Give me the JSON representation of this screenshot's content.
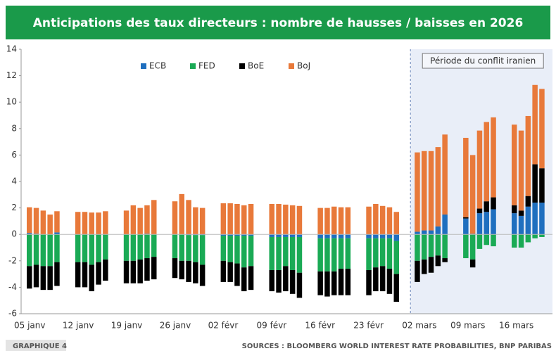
{
  "chart_data": {
    "type": "stacked_bar",
    "title": "Anticipations des taux directeurs : nombre de hausses / baisses en 2026",
    "categories": [
      "05 janv",
      null,
      null,
      null,
      null,
      "12 janv",
      null,
      null,
      null,
      null,
      "19 janv",
      null,
      null,
      null,
      null,
      "26 janv",
      null,
      null,
      null,
      null,
      "02 févr",
      null,
      null,
      null,
      null,
      "09 févr",
      null,
      null,
      null,
      null,
      "16 févr",
      null,
      null,
      null,
      null,
      "23 févr",
      null,
      null,
      null,
      null,
      "02 mars",
      null,
      null,
      null,
      null,
      "09 mars",
      null,
      null,
      null,
      null,
      "16 mars",
      null,
      null,
      null,
      null
    ],
    "series": [
      {
        "name": "ECB",
        "color": "#1f6fbf",
        "values": [
          0.1,
          0.05,
          0,
          0,
          0.15,
          0,
          0,
          0,
          0,
          0,
          0,
          0,
          0,
          0.05,
          0,
          0,
          0,
          -0.05,
          -0.05,
          -0.05,
          -0.1,
          -0.1,
          -0.1,
          -0.1,
          -0.1,
          -0.2,
          -0.2,
          -0.2,
          -0.2,
          -0.2,
          -0.3,
          -0.3,
          -0.3,
          -0.3,
          -0.3,
          -0.3,
          -0.3,
          -0.3,
          -0.3,
          -0.5,
          0.2,
          0.3,
          0.3,
          0.6,
          1.5,
          1.2,
          0.05,
          1.6,
          1.7,
          1.9,
          1.6,
          1.4,
          2.1,
          2.4,
          2.4
        ]
      },
      {
        "name": "FED",
        "color": "#1aaa55",
        "values": [
          -2.4,
          -2.3,
          -2.4,
          -2.4,
          -2.1,
          -2.1,
          -2.1,
          -2.3,
          -2.1,
          -1.9,
          -2.0,
          -2.0,
          -1.9,
          -1.8,
          -1.7,
          -1.8,
          -2.0,
          -1.95,
          -2.05,
          -2.25,
          -1.9,
          -2.0,
          -2.1,
          -2.4,
          -2.3,
          -2.5,
          -2.5,
          -2.2,
          -2.5,
          -2.7,
          -2.5,
          -2.5,
          -2.5,
          -2.3,
          -2.3,
          -2.4,
          -2.2,
          -2.1,
          -2.3,
          -2.5,
          -2.0,
          -1.9,
          -1.7,
          -1.6,
          -1.8,
          -1.8,
          -1.9,
          -1.1,
          -0.8,
          -0.9,
          -1.0,
          -1.0,
          -0.6,
          -0.3,
          -0.2
        ]
      },
      {
        "name": "BoE",
        "color": "#000000",
        "values": [
          -1.7,
          -1.7,
          -1.8,
          -1.8,
          -1.8,
          -1.9,
          -1.9,
          -2.0,
          -1.7,
          -1.6,
          -1.7,
          -1.7,
          -1.8,
          -1.7,
          -1.7,
          -1.5,
          -1.4,
          -1.6,
          -1.6,
          -1.6,
          -1.6,
          -1.5,
          -1.7,
          -1.8,
          -1.8,
          -1.6,
          -1.7,
          -1.9,
          -1.8,
          -1.9,
          -1.8,
          -1.9,
          -1.8,
          -2.0,
          -2.0,
          -1.9,
          -1.8,
          -1.9,
          -1.9,
          -2.1,
          -1.6,
          -1.1,
          -1.2,
          -0.8,
          -0.3,
          0.1,
          -0.6,
          0.35,
          0.8,
          0.9,
          0.6,
          0.4,
          0.8,
          2.9,
          2.6
        ]
      },
      {
        "name": "BoJ",
        "color": "#e8793a",
        "values": [
          1.95,
          1.95,
          1.8,
          1.5,
          1.6,
          1.7,
          1.7,
          1.65,
          1.65,
          1.75,
          1.8,
          2.2,
          2.0,
          2.15,
          2.6,
          2.5,
          3.05,
          2.6,
          2.05,
          2.0,
          2.35,
          2.35,
          2.3,
          2.2,
          2.3,
          2.3,
          2.3,
          2.25,
          2.2,
          2.15,
          2.0,
          2.0,
          2.1,
          2.05,
          2.05,
          2.1,
          2.3,
          2.15,
          2.05,
          1.7,
          6.0,
          6.0,
          6.0,
          6.0,
          6.05,
          6.0,
          5.95,
          5.9,
          6.0,
          6.05,
          6.1,
          6.05,
          6.05,
          6.0,
          6.0
        ]
      }
    ],
    "ylim": [
      -6,
      14
    ],
    "yticks": [
      -6,
      -4,
      -2,
      0,
      2,
      4,
      6,
      8,
      10,
      12,
      14
    ],
    "legend": "top",
    "annotation": {
      "text": "Période du conflit iranien",
      "start": "02 mars"
    },
    "footer_label": "GRAPHIQUE 4",
    "source": "SOURCES : BLOOMBERG WORLD INTEREST RATE PROBABILITIES, BNP PARIBAS"
  }
}
